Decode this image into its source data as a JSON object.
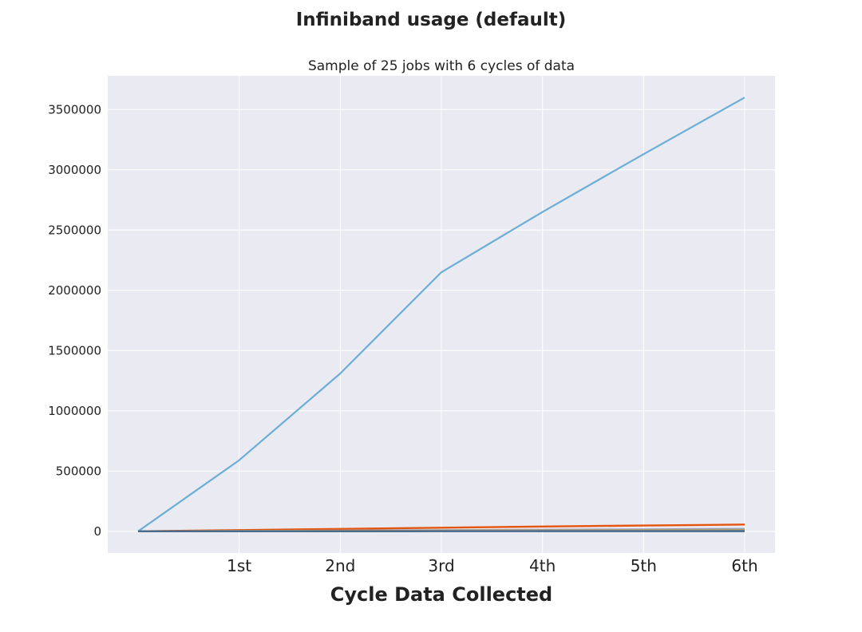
{
  "figure": {
    "title": "Infiniband usage (default)"
  },
  "chart_data": {
    "type": "line",
    "title": "Sample of 25 jobs with 6 cycles of data",
    "xlabel": "Cycle Data Collected",
    "ylabel": "",
    "x": [
      0,
      1,
      2,
      3,
      4,
      5,
      6
    ],
    "x_tick_values": [
      1,
      2,
      3,
      4,
      5,
      6
    ],
    "x_tick_labels": [
      "1st",
      "2nd",
      "3rd",
      "4th",
      "5th",
      "6th"
    ],
    "y_ticks": [
      0,
      500000,
      1000000,
      1500000,
      2000000,
      2500000,
      3000000,
      3500000
    ],
    "y_tick_labels": [
      "0",
      "500000",
      "1000000",
      "1500000",
      "2000000",
      "2500000",
      "3000000",
      "3500000"
    ],
    "xlim": [
      -0.3,
      6.3
    ],
    "ylim": [
      -180000,
      3780000
    ],
    "grid": true,
    "background": "#EAEAF2",
    "series": [
      {
        "color": "#6BAED6",
        "values": [
          0,
          590000,
          1310000,
          2150000,
          2650000,
          3130000,
          3600000
        ]
      },
      {
        "color": "#E6550D",
        "values": [
          0,
          10000,
          20000,
          30000,
          40000,
          48000,
          56000
        ]
      },
      {
        "color": "#9E9AC8",
        "values": [
          0,
          3000,
          6000,
          9000,
          13000,
          16000,
          20000
        ]
      },
      {
        "color": "#74C476",
        "values": [
          0,
          2000,
          4000,
          6000,
          8000,
          10000,
          12000
        ]
      },
      {
        "color": "#FD8D3C",
        "values": [
          0,
          1500,
          3000,
          4500,
          6000,
          7500,
          9000
        ]
      },
      {
        "color": "#969696",
        "values": [
          0,
          1000,
          2000,
          3000,
          4000,
          5000,
          6000
        ]
      },
      {
        "color": "#4A6B8A",
        "values": [
          0,
          200,
          400,
          600,
          800,
          1000,
          1200
        ]
      }
    ]
  }
}
